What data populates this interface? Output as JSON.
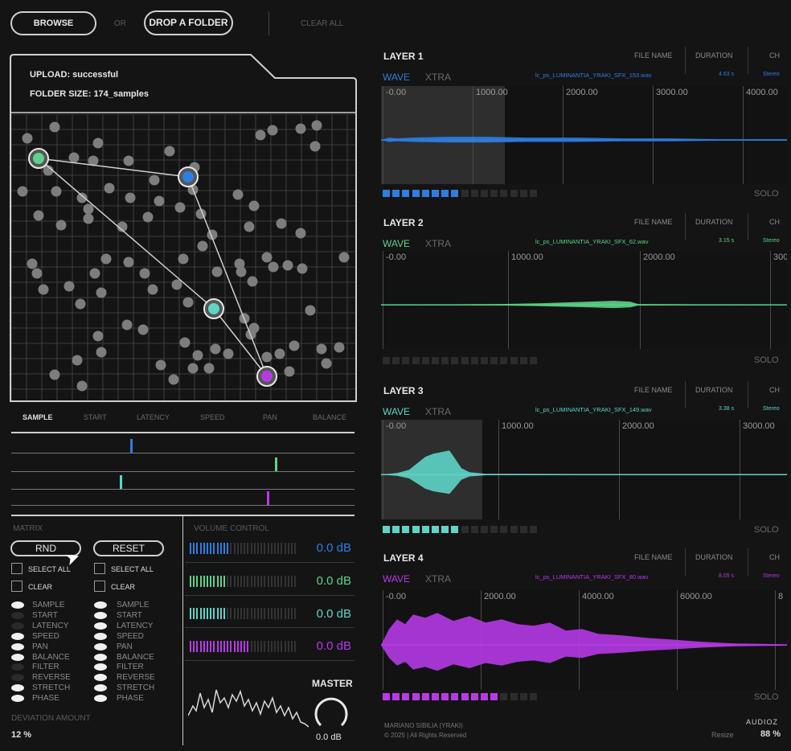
{
  "top": {
    "browse": "BROWSE",
    "or": "OR",
    "drop": "DROP A FOLDER",
    "clear_all": "CLEAR ALL"
  },
  "upload": {
    "status": "UPLOAD: successful",
    "folder_size": "FOLDER SIZE: 174_samples"
  },
  "params": [
    "SAMPLE",
    "START",
    "LATENCY",
    "SPEED",
    "PAN",
    "BALANCE"
  ],
  "matrix": {
    "title": "MATRIX",
    "rnd": "RND",
    "reset": "RESET",
    "select_all": "SELECT ALL",
    "clear": "CLEAR",
    "options": [
      "SAMPLE",
      "START",
      "LATENCY",
      "SPEED",
      "PAN",
      "BALANCE",
      "FILTER",
      "REVERSE",
      "STRETCH",
      "PHASE"
    ],
    "left_on": [
      true,
      false,
      false,
      true,
      true,
      true,
      false,
      false,
      true,
      true
    ],
    "right_on": [
      true,
      true,
      true,
      true,
      true,
      true,
      true,
      true,
      true,
      true
    ],
    "deviation_label": "DEVIATION AMOUNT",
    "deviation_value": "12 %"
  },
  "volume": {
    "title": "VOLUME CONTROL",
    "values": [
      "0.0 dB",
      "0.0 dB",
      "0.0 dB",
      "0.0 dB"
    ],
    "master_label": "MASTER",
    "master_value": "0.0 dB"
  },
  "colors": {
    "blue": "#2f7de0",
    "green": "#5dd28a",
    "cyan": "#5fd4c6",
    "purple": "#b63ae6"
  },
  "layers": [
    {
      "name": "LAYER 1",
      "wave": "WAVE",
      "xtra": "XTRA",
      "file_name_hdr": "FILE NAME",
      "duration_hdr": "DURATION",
      "ch_hdr": "CH",
      "file": "lc_ps_LUMINANTIA_YRAKI_SFX_153.wav",
      "duration": "4.63 s",
      "ch": "Stereo",
      "ticks": [
        "-0.00",
        "1000.00",
        "2000.00",
        "3000.00",
        "4000.00"
      ],
      "solo": "SOLO",
      "active_steps": 8
    },
    {
      "name": "LAYER 2",
      "wave": "WAVE",
      "xtra": "XTRA",
      "file_name_hdr": "FILE NAME",
      "duration_hdr": "DURATION",
      "ch_hdr": "CH",
      "file": "lc_ps_LUMINANTIA_YRAKI_SFX_62.wav",
      "duration": "3.15 s",
      "ch": "Stereo",
      "ticks": [
        "-0.00",
        "1000.00",
        "2000.00",
        "300"
      ],
      "solo": "SOLO",
      "active_steps": 0
    },
    {
      "name": "LAYER 3",
      "wave": "WAVE",
      "xtra": "XTRA",
      "file_name_hdr": "FILE NAME",
      "duration_hdr": "DURATION",
      "ch_hdr": "CH",
      "file": "lc_ps_LUMINANTIA_YRAKI_SFX_149.wav",
      "duration": "3.38 s",
      "ch": "Stereo",
      "ticks": [
        "-0.00",
        "1000.00",
        "2000.00",
        "3000.00"
      ],
      "solo": "SOLO",
      "active_steps": 8
    },
    {
      "name": "LAYER 4",
      "wave": "WAVE",
      "xtra": "XTRA",
      "file_name_hdr": "FILE NAME",
      "duration_hdr": "DURATION",
      "ch_hdr": "CH",
      "file": "lc_ps_LUMINANTIA_YRAKI_SFX_80.wav",
      "duration": "8.05 s",
      "ch": "Stereo",
      "ticks": [
        "-0.00",
        "2000.00",
        "4000.00",
        "6000.00",
        "8"
      ],
      "solo": "SOLO",
      "active_steps": 12
    }
  ],
  "footer": {
    "author": "MARIANO SIBILIA (YRAKI)",
    "rights": "© 2025 | All Rights Reserved",
    "resize": "Resize",
    "zoom": "88 %",
    "watermark": "AUDIOZ"
  }
}
